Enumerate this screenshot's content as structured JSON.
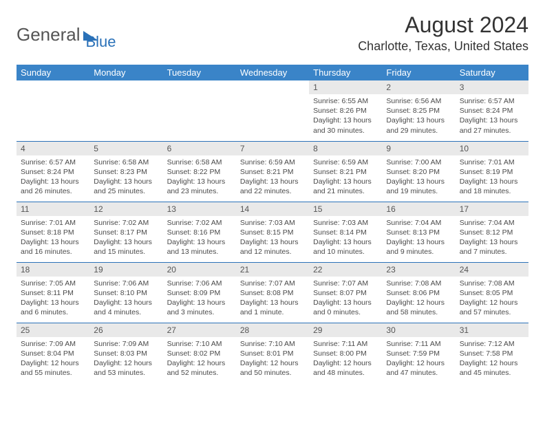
{
  "logo": {
    "general": "General",
    "blue": "Blue"
  },
  "header": {
    "month_title": "August 2024",
    "location": "Charlotte, Texas, United States"
  },
  "colors": {
    "header_bg": "#3a84c8",
    "header_text": "#ffffff",
    "accent": "#2a71b8",
    "daynum_bg": "#e9e9e9",
    "body_text": "#4a4a4a"
  },
  "weekdays": [
    "Sunday",
    "Monday",
    "Tuesday",
    "Wednesday",
    "Thursday",
    "Friday",
    "Saturday"
  ],
  "weeks": [
    [
      {
        "empty": true
      },
      {
        "empty": true
      },
      {
        "empty": true
      },
      {
        "empty": true
      },
      {
        "day": "1",
        "sunrise": "Sunrise: 6:55 AM",
        "sunset": "Sunset: 8:26 PM",
        "daylight": "Daylight: 13 hours and 30 minutes."
      },
      {
        "day": "2",
        "sunrise": "Sunrise: 6:56 AM",
        "sunset": "Sunset: 8:25 PM",
        "daylight": "Daylight: 13 hours and 29 minutes."
      },
      {
        "day": "3",
        "sunrise": "Sunrise: 6:57 AM",
        "sunset": "Sunset: 8:24 PM",
        "daylight": "Daylight: 13 hours and 27 minutes."
      }
    ],
    [
      {
        "day": "4",
        "sunrise": "Sunrise: 6:57 AM",
        "sunset": "Sunset: 8:24 PM",
        "daylight": "Daylight: 13 hours and 26 minutes."
      },
      {
        "day": "5",
        "sunrise": "Sunrise: 6:58 AM",
        "sunset": "Sunset: 8:23 PM",
        "daylight": "Daylight: 13 hours and 25 minutes."
      },
      {
        "day": "6",
        "sunrise": "Sunrise: 6:58 AM",
        "sunset": "Sunset: 8:22 PM",
        "daylight": "Daylight: 13 hours and 23 minutes."
      },
      {
        "day": "7",
        "sunrise": "Sunrise: 6:59 AM",
        "sunset": "Sunset: 8:21 PM",
        "daylight": "Daylight: 13 hours and 22 minutes."
      },
      {
        "day": "8",
        "sunrise": "Sunrise: 6:59 AM",
        "sunset": "Sunset: 8:21 PM",
        "daylight": "Daylight: 13 hours and 21 minutes."
      },
      {
        "day": "9",
        "sunrise": "Sunrise: 7:00 AM",
        "sunset": "Sunset: 8:20 PM",
        "daylight": "Daylight: 13 hours and 19 minutes."
      },
      {
        "day": "10",
        "sunrise": "Sunrise: 7:01 AM",
        "sunset": "Sunset: 8:19 PM",
        "daylight": "Daylight: 13 hours and 18 minutes."
      }
    ],
    [
      {
        "day": "11",
        "sunrise": "Sunrise: 7:01 AM",
        "sunset": "Sunset: 8:18 PM",
        "daylight": "Daylight: 13 hours and 16 minutes."
      },
      {
        "day": "12",
        "sunrise": "Sunrise: 7:02 AM",
        "sunset": "Sunset: 8:17 PM",
        "daylight": "Daylight: 13 hours and 15 minutes."
      },
      {
        "day": "13",
        "sunrise": "Sunrise: 7:02 AM",
        "sunset": "Sunset: 8:16 PM",
        "daylight": "Daylight: 13 hours and 13 minutes."
      },
      {
        "day": "14",
        "sunrise": "Sunrise: 7:03 AM",
        "sunset": "Sunset: 8:15 PM",
        "daylight": "Daylight: 13 hours and 12 minutes."
      },
      {
        "day": "15",
        "sunrise": "Sunrise: 7:03 AM",
        "sunset": "Sunset: 8:14 PM",
        "daylight": "Daylight: 13 hours and 10 minutes."
      },
      {
        "day": "16",
        "sunrise": "Sunrise: 7:04 AM",
        "sunset": "Sunset: 8:13 PM",
        "daylight": "Daylight: 13 hours and 9 minutes."
      },
      {
        "day": "17",
        "sunrise": "Sunrise: 7:04 AM",
        "sunset": "Sunset: 8:12 PM",
        "daylight": "Daylight: 13 hours and 7 minutes."
      }
    ],
    [
      {
        "day": "18",
        "sunrise": "Sunrise: 7:05 AM",
        "sunset": "Sunset: 8:11 PM",
        "daylight": "Daylight: 13 hours and 6 minutes."
      },
      {
        "day": "19",
        "sunrise": "Sunrise: 7:06 AM",
        "sunset": "Sunset: 8:10 PM",
        "daylight": "Daylight: 13 hours and 4 minutes."
      },
      {
        "day": "20",
        "sunrise": "Sunrise: 7:06 AM",
        "sunset": "Sunset: 8:09 PM",
        "daylight": "Daylight: 13 hours and 3 minutes."
      },
      {
        "day": "21",
        "sunrise": "Sunrise: 7:07 AM",
        "sunset": "Sunset: 8:08 PM",
        "daylight": "Daylight: 13 hours and 1 minute."
      },
      {
        "day": "22",
        "sunrise": "Sunrise: 7:07 AM",
        "sunset": "Sunset: 8:07 PM",
        "daylight": "Daylight: 13 hours and 0 minutes."
      },
      {
        "day": "23",
        "sunrise": "Sunrise: 7:08 AM",
        "sunset": "Sunset: 8:06 PM",
        "daylight": "Daylight: 12 hours and 58 minutes."
      },
      {
        "day": "24",
        "sunrise": "Sunrise: 7:08 AM",
        "sunset": "Sunset: 8:05 PM",
        "daylight": "Daylight: 12 hours and 57 minutes."
      }
    ],
    [
      {
        "day": "25",
        "sunrise": "Sunrise: 7:09 AM",
        "sunset": "Sunset: 8:04 PM",
        "daylight": "Daylight: 12 hours and 55 minutes."
      },
      {
        "day": "26",
        "sunrise": "Sunrise: 7:09 AM",
        "sunset": "Sunset: 8:03 PM",
        "daylight": "Daylight: 12 hours and 53 minutes."
      },
      {
        "day": "27",
        "sunrise": "Sunrise: 7:10 AM",
        "sunset": "Sunset: 8:02 PM",
        "daylight": "Daylight: 12 hours and 52 minutes."
      },
      {
        "day": "28",
        "sunrise": "Sunrise: 7:10 AM",
        "sunset": "Sunset: 8:01 PM",
        "daylight": "Daylight: 12 hours and 50 minutes."
      },
      {
        "day": "29",
        "sunrise": "Sunrise: 7:11 AM",
        "sunset": "Sunset: 8:00 PM",
        "daylight": "Daylight: 12 hours and 48 minutes."
      },
      {
        "day": "30",
        "sunrise": "Sunrise: 7:11 AM",
        "sunset": "Sunset: 7:59 PM",
        "daylight": "Daylight: 12 hours and 47 minutes."
      },
      {
        "day": "31",
        "sunrise": "Sunrise: 7:12 AM",
        "sunset": "Sunset: 7:58 PM",
        "daylight": "Daylight: 12 hours and 45 minutes."
      }
    ]
  ]
}
